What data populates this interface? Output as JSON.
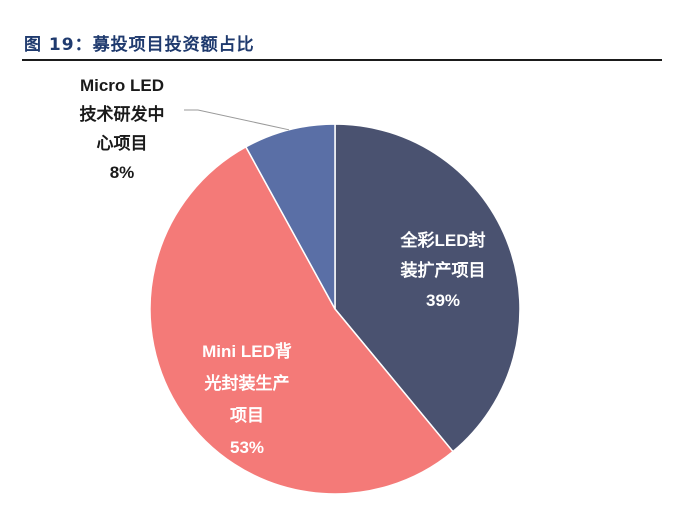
{
  "figure": {
    "title": "图 19：募投项目投资额占比"
  },
  "chart_data": {
    "type": "pie",
    "title": "图 19：募投项目投资额占比",
    "start": "12 o'clock",
    "direction": "clockwise",
    "legend": "none",
    "slices": [
      {
        "label_lines": [
          "全彩LED封",
          "装扩产项目"
        ],
        "pct_text": "39%",
        "value": 39,
        "color": "#4a5270",
        "label_color": "#ffffff",
        "label_pos": "inside"
      },
      {
        "label_lines": [
          "Mini LED背",
          "光封装生产",
          "项目"
        ],
        "pct_text": "53%",
        "value": 53,
        "color": "#f47a78",
        "label_color": "#ffffff",
        "label_pos": "inside"
      },
      {
        "label_lines": [
          "Micro LED",
          "技术研发中",
          "心项目"
        ],
        "pct_text": "8%",
        "value": 8,
        "color": "#5a6fa6",
        "label_color": "#1a1a1a",
        "label_pos": "outside-top-left"
      }
    ]
  }
}
